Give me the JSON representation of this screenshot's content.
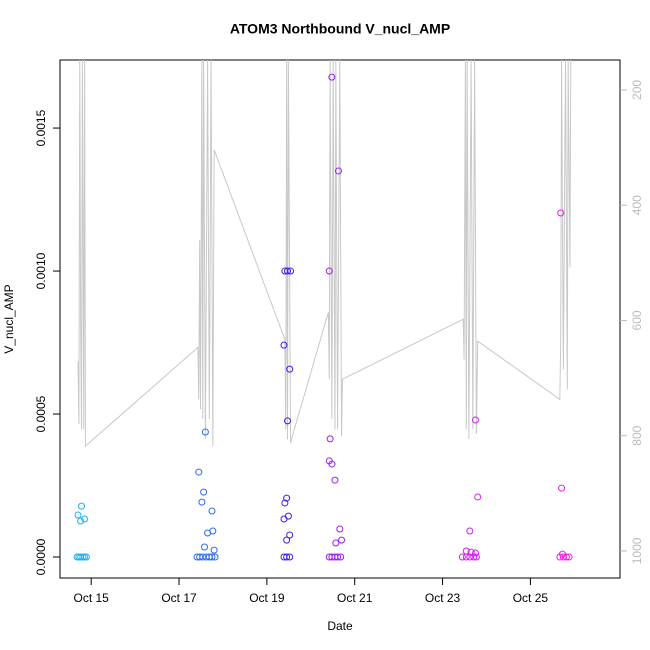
{
  "chart_data": {
    "type": "scatter",
    "title": "ATOM3 Northbound V_nucl_AMP",
    "x_label": "Date",
    "y_label": "V_nucl_AMP",
    "xlim": [
      14.29,
      27.04
    ],
    "xticks": [
      {
        "value": 15,
        "label": "Oct 15"
      },
      {
        "value": 17,
        "label": "Oct 17"
      },
      {
        "value": 19,
        "label": "Oct 19"
      },
      {
        "value": 21,
        "label": "Oct 21"
      },
      {
        "value": 23,
        "label": "Oct 23"
      },
      {
        "value": 25,
        "label": "Oct 25"
      }
    ],
    "ylim": [
      -7.34e-05,
      0.001738
    ],
    "yticks": [
      {
        "value": 0,
        "label": "0.0000"
      },
      {
        "value": 0.0005,
        "label": "0.0005"
      },
      {
        "value": 0.001,
        "label": "0.0010"
      },
      {
        "value": 0.0015,
        "label": "0.0015"
      }
    ],
    "y2lim": [
      1047,
      148
    ],
    "y2ticks": [
      200,
      400,
      600,
      800,
      1000
    ],
    "grid": false,
    "series": [
      {
        "color": "#c8c8c8",
        "axis": "y2",
        "type": "line",
        "x": [
          14.7,
          14.72,
          14.74,
          14.76,
          14.78,
          14.8,
          14.83,
          14.85,
          14.87,
          17.43,
          17.45,
          17.47,
          17.49,
          17.52,
          17.54,
          17.56,
          17.6,
          17.65,
          17.69,
          17.73,
          17.77,
          17.8,
          19.41,
          19.43,
          19.45,
          19.47,
          19.49,
          19.54,
          19.56,
          20.4,
          20.42,
          20.44,
          20.48,
          20.51,
          20.55,
          20.57,
          20.61,
          20.66,
          20.7,
          20.72,
          23.47,
          23.49,
          23.52,
          23.54,
          23.56,
          23.6,
          23.65,
          23.69,
          23.73,
          23.77,
          23.8,
          25.67,
          25.69,
          25.71,
          25.75,
          25.8,
          25.84,
          25.86,
          25.9,
          25.92
        ],
        "values": [
          671,
          780,
          148,
          598,
          789,
          148,
          789,
          148,
          818,
          647,
          737,
          460,
          754,
          148,
          771,
          148,
          806,
          148,
          771,
          148,
          818,
          304,
          633,
          789,
          148,
          806,
          148,
          813,
          806,
          586,
          702,
          148,
          771,
          148,
          789,
          148,
          789,
          148,
          801,
          702,
          598,
          668,
          148,
          789,
          148,
          806,
          148,
          789,
          148,
          797,
          636,
          737,
          633,
          148,
          685,
          148,
          720,
          148,
          508,
          148
        ]
      },
      {
        "color": "#1ab2f5",
        "x": [
          14.7,
          14.78,
          14.76,
          14.85,
          14.68,
          14.72,
          14.76,
          14.81,
          14.85,
          14.89
        ],
        "values": [
          0.000147,
          0.000178,
          0.000126,
          0.000133,
          0,
          0,
          0,
          0,
          0,
          0
        ]
      },
      {
        "color": "#2a6cf0",
        "x": [
          17.45,
          17.56,
          17.52,
          17.6,
          17.75,
          17.65,
          17.77,
          17.58,
          17.8,
          17.41,
          17.47,
          17.54,
          17.62,
          17.69,
          17.75,
          17.82
        ],
        "values": [
          0.000297,
          0.000227,
          0.000192,
          0.000437,
          0.000161,
          8.4e-05,
          9.1e-05,
          3.5e-05,
          2.4e-05,
          0,
          0,
          0,
          0,
          0,
          0,
          0
        ]
      },
      {
        "color": "#3a1ff0",
        "x": [
          19.41,
          19.47,
          19.54,
          19.39,
          19.52,
          19.47,
          19.45,
          19.41,
          19.49,
          19.39,
          19.52,
          19.45,
          19.39,
          19.45,
          19.52
        ],
        "values": [
          0.001,
          0.001,
          0.001,
          0.000741,
          0.000657,
          0.000476,
          0.000206,
          0.000189,
          0.000143,
          0.000133,
          7.7e-05,
          5.9e-05,
          0,
          0,
          0
        ]
      },
      {
        "color": "#9a1ff0",
        "x": [
          20.48,
          20.63,
          20.42,
          20.44,
          20.42,
          20.48,
          20.55,
          20.66,
          20.7,
          20.57,
          20.42,
          20.48,
          20.55,
          20.61,
          20.68
        ],
        "values": [
          0.001678,
          0.00135,
          0.001,
          0.000413,
          0.000336,
          0.000325,
          0.000269,
          9.8e-05,
          5.9e-05,
          4.9e-05,
          0,
          0,
          0,
          0,
          0
        ]
      },
      {
        "color": "#d21ff0",
        "x": [
          23.75,
          23.8,
          23.62,
          23.54,
          23.65,
          23.75,
          23.45,
          23.54,
          23.62,
          23.71,
          23.77
        ],
        "values": [
          0.000479,
          0.00021,
          9.1e-05,
          2.1e-05,
          1.7e-05,
          1.4e-05,
          0,
          0,
          0,
          0,
          0
        ]
      },
      {
        "color": "#f01fe6",
        "x": [
          25.69,
          25.71,
          25.73,
          25.67,
          25.75,
          25.82,
          25.88
        ],
        "values": [
          0.001203,
          0.000241,
          1e-05,
          0,
          0,
          0,
          0
        ]
      }
    ]
  }
}
